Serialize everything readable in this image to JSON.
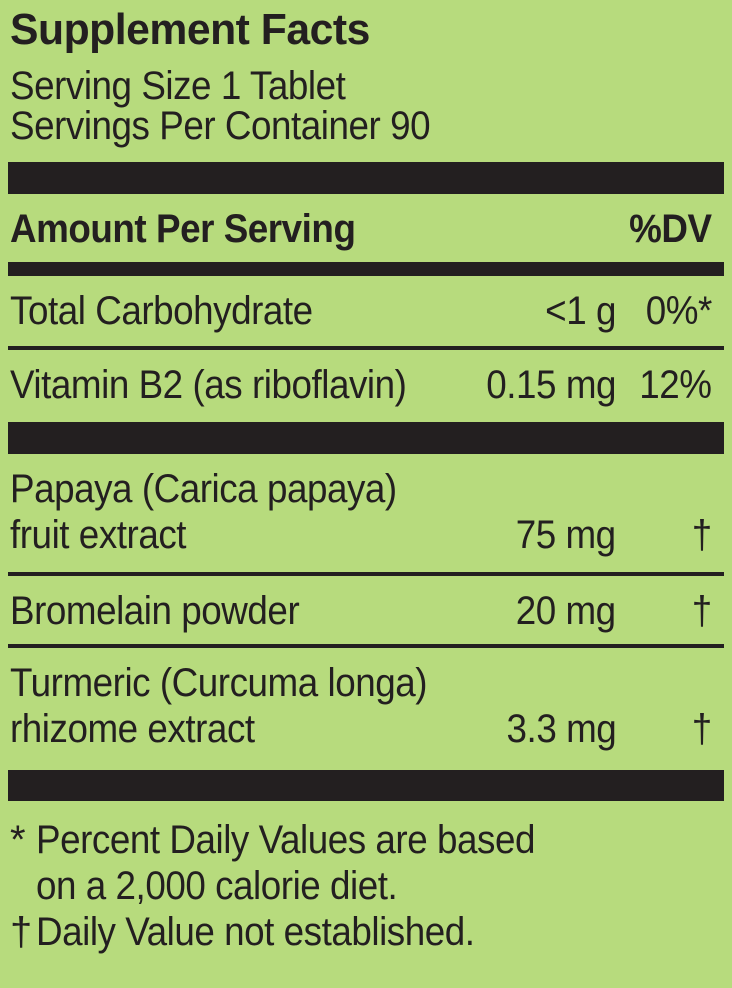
{
  "label": {
    "title": "Supplement Facts",
    "serving_size": "Serving Size 1 Tablet",
    "servings_per_container": "Servings Per Container 90",
    "columns": {
      "amount_header": "Amount Per Serving",
      "dv_header": "%DV"
    },
    "rows": [
      {
        "name": "Total Carbohydrate",
        "amount": "<1 g",
        "dv": "0%*"
      },
      {
        "name": "Vitamin B2 (as riboflavin)",
        "amount": "0.15 mg",
        "dv": "12%"
      },
      {
        "name_line1": "Papaya (Carica papaya)",
        "name_line2": "fruit extract",
        "amount": "75 mg",
        "dv": "†"
      },
      {
        "name": "Bromelain powder",
        "amount": "20 mg",
        "dv": "†"
      },
      {
        "name_line1": "Turmeric (Curcuma longa)",
        "name_line2": "rhizome extract",
        "amount": "3.3 mg",
        "dv": "†"
      }
    ],
    "footnotes": [
      {
        "marker": "*",
        "line1": "Percent Daily Values are based",
        "line2": "on a 2,000 calorie diet."
      },
      {
        "marker": "†",
        "line1": "Daily Value not established."
      }
    ],
    "colors": {
      "background": "#b7db7d",
      "ink": "#231f20"
    }
  }
}
